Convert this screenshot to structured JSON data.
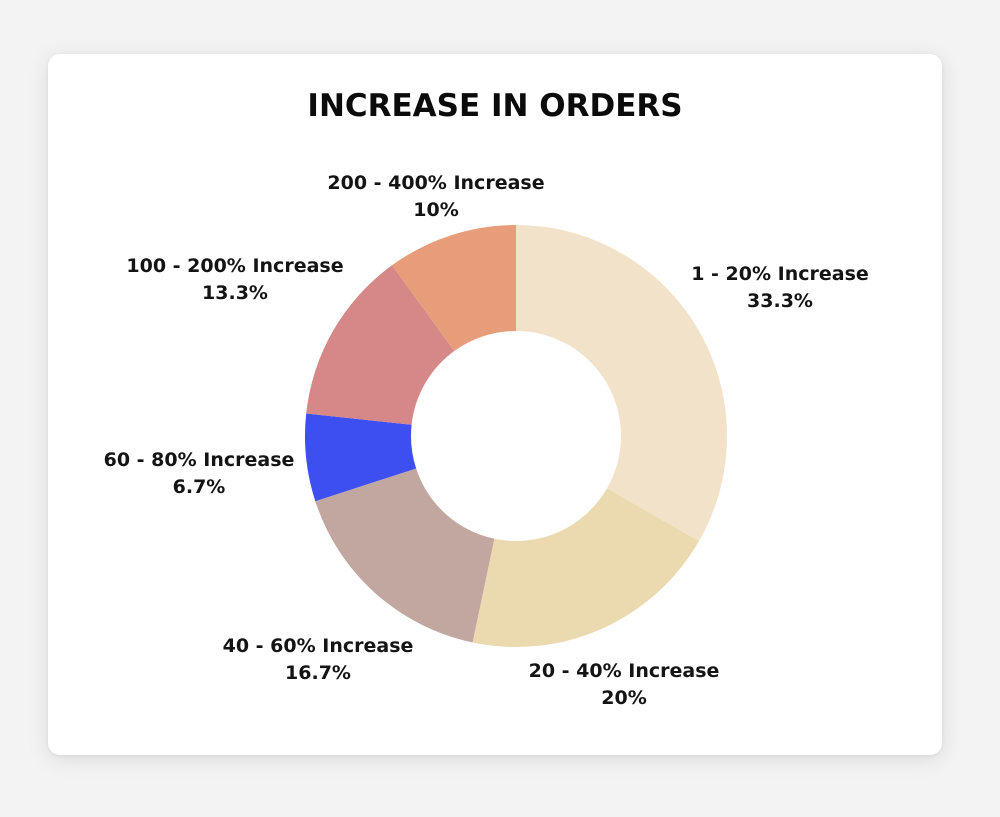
{
  "chart_data": {
    "type": "pie",
    "title": "INCREASE IN ORDERS",
    "categories": [
      "1 - 20% Increase",
      "20 - 40% Increase",
      "40 - 60% Increase",
      "60 - 80% Increase",
      "100 - 200% Increase",
      "200 - 400% Increase"
    ],
    "values": [
      33.3,
      20,
      16.7,
      6.7,
      13.3,
      10
    ],
    "value_labels": [
      "33.3%",
      "20%",
      "16.7%",
      "6.7%",
      "13.3%",
      "10%"
    ],
    "colors": [
      "#f3e2ca",
      "#ebdab0",
      "#c1a7a0",
      "#3d4ff0",
      "#d68787",
      "#e89d7a"
    ],
    "donut": true,
    "legend": "none",
    "grid": false
  }
}
